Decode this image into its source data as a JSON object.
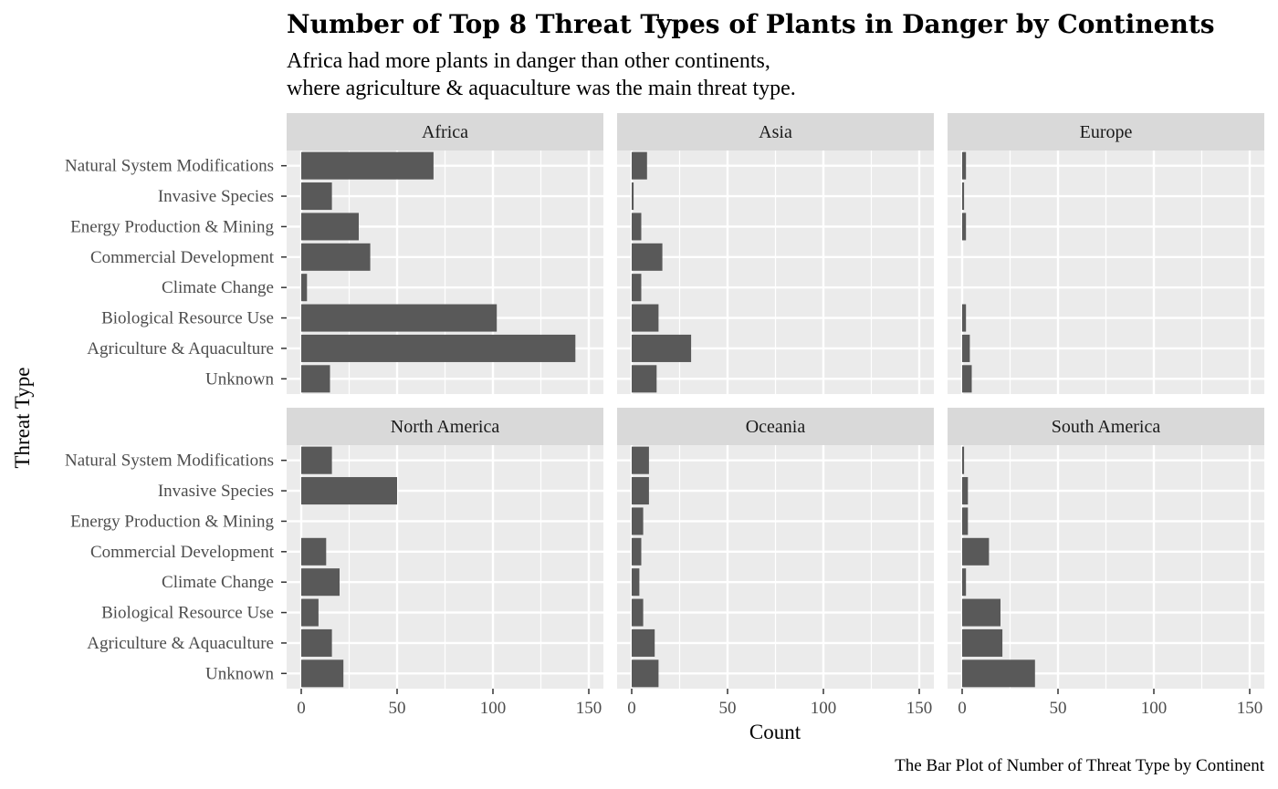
{
  "title": "Number of Top 8 Threat Types of Plants in Danger by Continents",
  "subtitle_lines": [
    "Africa had more plants in danger than other continents,",
    "where agriculture & aquaculture was the main threat type."
  ],
  "caption": "The Bar Plot of Number of Threat Type by Continent",
  "colors": {
    "bar": "#595959",
    "panel_bg": "#ebebeb",
    "strip_bg": "#d9d9d9",
    "grid": "#ffffff",
    "tick": "#333333"
  },
  "chart_data": {
    "type": "bar",
    "orientation": "horizontal",
    "facet_layout": "3 columns x 2 rows",
    "xlabel": "Count",
    "ylabel": "Threat Type",
    "xlim": [
      0,
      150
    ],
    "x_ticks": [
      0,
      50,
      100,
      150
    ],
    "grid": true,
    "categories": [
      "Natural System Modifications",
      "Invasive Species",
      "Energy Production & Mining",
      "Commercial Development",
      "Climate Change",
      "Biological Resource Use",
      "Agriculture & Aquaculture",
      "Unknown"
    ],
    "panels": [
      {
        "name": "Africa",
        "values": [
          69,
          16,
          30,
          36,
          3,
          102,
          143,
          15
        ]
      },
      {
        "name": "Asia",
        "values": [
          8,
          1,
          5,
          16,
          5,
          14,
          31,
          13
        ]
      },
      {
        "name": "Europe",
        "values": [
          2,
          1,
          2,
          0,
          0,
          2,
          4,
          5
        ]
      },
      {
        "name": "North America",
        "values": [
          16,
          50,
          0,
          13,
          20,
          9,
          16,
          22
        ]
      },
      {
        "name": "Oceania",
        "values": [
          9,
          9,
          6,
          5,
          4,
          6,
          12,
          14
        ]
      },
      {
        "name": "South America",
        "values": [
          1,
          3,
          3,
          14,
          2,
          20,
          21,
          38
        ]
      }
    ]
  }
}
